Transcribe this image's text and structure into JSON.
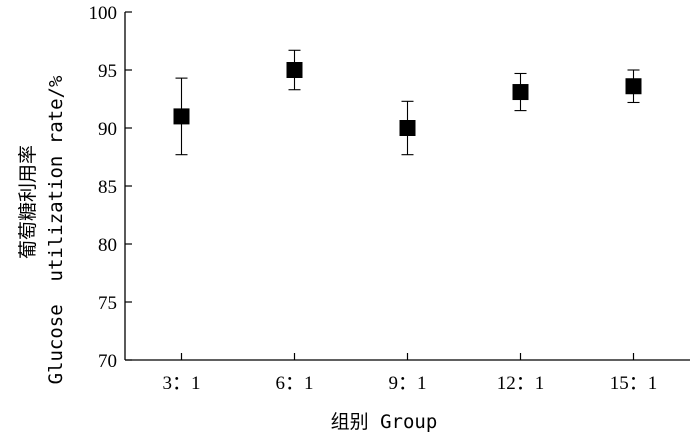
{
  "chart_data": {
    "type": "scatter",
    "categories": [
      "3：1",
      "6：1",
      "9：1",
      "12：1",
      "15：1"
    ],
    "series": [
      {
        "values": [
          91.0,
          95.0,
          90.0,
          93.1,
          93.6
        ],
        "error": [
          3.3,
          1.7,
          2.3,
          1.6,
          1.4
        ]
      }
    ],
    "xlabel": "组别 Group",
    "ylabel_cn": "葡萄糖利用率",
    "ylabel_en": "Glucose  utilization rate/%",
    "ylim": [
      70,
      100
    ],
    "yticks": [
      70,
      75,
      80,
      85,
      90,
      95,
      100
    ],
    "grid": false,
    "marker_color": "#000000"
  }
}
